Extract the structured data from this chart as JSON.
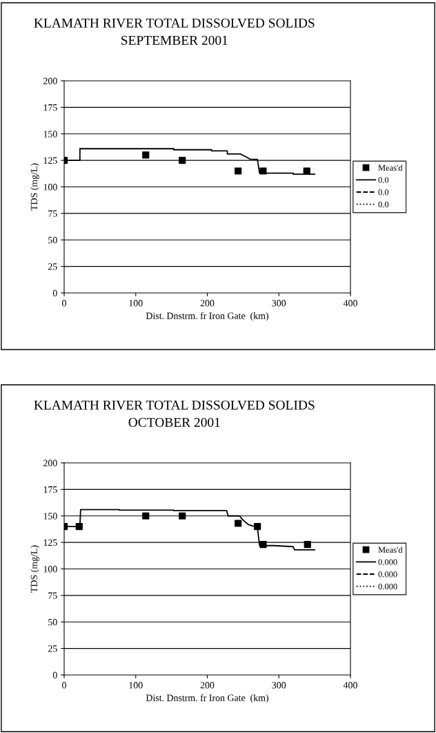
{
  "chart_data": [
    {
      "type": "line",
      "title": "KLAMATH RIVER TOTAL DISSOLVED SOLIDS",
      "subtitle": "SEPTEMBER 2001",
      "xlabel": "Dist. Dnstrm. fr Iron Gate  (km)",
      "ylabel": "TDS (mg/L)",
      "xlim": [
        0,
        400
      ],
      "xticks": [
        0,
        100,
        200,
        300,
        400
      ],
      "ylim": [
        0,
        200
      ],
      "yticks": [
        0,
        25,
        50,
        75,
        100,
        125,
        150,
        175,
        200
      ],
      "grid": "y",
      "legend": "right",
      "series": [
        {
          "name": "Meas'd",
          "type": "scatter",
          "marker": "square",
          "color": "#000000",
          "x": [
            0,
            114,
            165,
            243,
            278,
            339
          ],
          "values": [
            125,
            130,
            125,
            115,
            115,
            115
          ]
        },
        {
          "name": "0.0",
          "line_style": "solid",
          "color": "#000000",
          "x": [
            0,
            22,
            22,
            153,
            153,
            206,
            206,
            228,
            228,
            246,
            255,
            260,
            270,
            273,
            320,
            320,
            350
          ],
          "values": [
            125,
            125,
            136,
            136,
            135,
            135,
            134,
            134,
            131,
            131,
            128,
            126,
            126,
            113,
            113,
            112,
            112
          ]
        },
        {
          "name": "0.0",
          "line_style": "dashed",
          "color": "#000000"
        },
        {
          "name": "0.0",
          "line_style": "dotted",
          "color": "#000000"
        }
      ]
    },
    {
      "type": "line",
      "title": "KLAMATH RIVER TOTAL DISSOLVED SOLIDS",
      "subtitle": "OCTOBER 2001",
      "xlabel": "Dist. Dnstrm. fr Iron Gate  (km)",
      "ylabel": "TDS (mg/L)",
      "xlim": [
        0,
        400
      ],
      "xticks": [
        0,
        100,
        200,
        300,
        400
      ],
      "ylim": [
        0,
        200
      ],
      "yticks": [
        0,
        25,
        50,
        75,
        100,
        125,
        150,
        175,
        200
      ],
      "grid": "y",
      "legend": "right",
      "series": [
        {
          "name": "Meas'd",
          "type": "scatter",
          "marker": "square",
          "color": "#000000",
          "x": [
            0,
            21,
            114,
            165,
            243,
            270,
            278,
            340
          ],
          "values": [
            140,
            140,
            150,
            150,
            143,
            140,
            123,
            123
          ]
        },
        {
          "name": "0.000",
          "line_style": "solid",
          "color": "#000000",
          "x": [
            0,
            22,
            23,
            77,
            77,
            153,
            153,
            227,
            229,
            245,
            250,
            257,
            270,
            273,
            293,
            320,
            322,
            350
          ],
          "values": [
            140,
            140,
            156,
            156,
            155.5,
            155.5,
            155,
            155,
            150,
            150,
            146,
            142,
            139,
            122,
            122,
            121,
            118,
            118
          ]
        },
        {
          "name": "0.000",
          "line_style": "dashed",
          "color": "#000000"
        },
        {
          "name": "0.000",
          "line_style": "dotted",
          "color": "#000000"
        }
      ]
    }
  ]
}
